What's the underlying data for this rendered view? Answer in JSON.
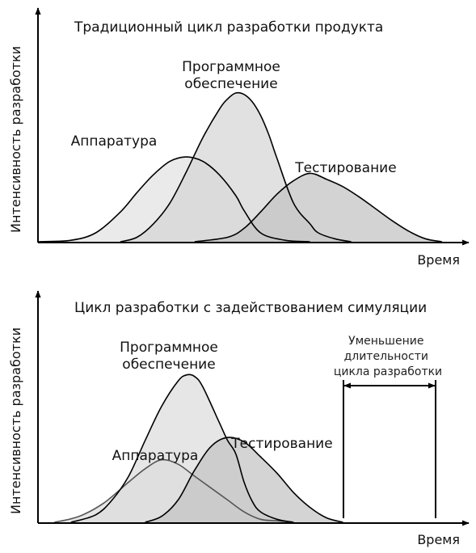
{
  "chart_data": [
    {
      "type": "area",
      "title": "Традиционный цикл разработки продукта",
      "xlabel": "Время",
      "ylabel": "Интенсивность разработки",
      "xlim": [
        0,
        100
      ],
      "ylim": [
        0,
        100
      ],
      "grid": false,
      "legend": "none",
      "series": [
        {
          "name": "Аппаратура",
          "label_lines": [
            "Аппаратура"
          ],
          "color": "#e2e2e2",
          "x": [
            0,
            8,
            14,
            20,
            24,
            28,
            32,
            36,
            40,
            44,
            48,
            50,
            54,
            60,
            66
          ],
          "y": [
            0,
            1,
            6,
            20,
            33,
            45,
            54,
            57,
            54,
            45,
            31,
            21,
            6,
            1,
            0
          ]
        },
        {
          "name": "Программное обеспечение",
          "label_lines": [
            "Программное",
            "обеспечение"
          ],
          "color": "#d6d6d6",
          "x": [
            20,
            24,
            28,
            32,
            36,
            40,
            44,
            46,
            48,
            50,
            52,
            54,
            56,
            58,
            62,
            66,
            68,
            72,
            76
          ],
          "y": [
            0,
            3,
            12,
            26,
            47,
            70,
            89,
            96,
            100,
            99,
            94,
            85,
            72,
            56,
            26,
            12,
            6,
            2,
            0
          ]
        },
        {
          "name": "Тестирование",
          "label_lines": [
            "Тестирование"
          ],
          "color": "#c2c2c2",
          "x": [
            38,
            46,
            50,
            54,
            58,
            62,
            66,
            70,
            74,
            78,
            82,
            86,
            90,
            94,
            98
          ],
          "y": [
            0,
            3,
            9,
            20,
            32,
            41,
            46,
            42,
            37,
            30,
            22,
            14,
            7,
            2,
            0
          ]
        }
      ]
    },
    {
      "type": "area",
      "title": "Цикл разработки с задействованием симуляции",
      "xlabel": "Время",
      "ylabel": "Интенсивность разработки",
      "xlim": [
        0,
        100
      ],
      "ylim": [
        0,
        100
      ],
      "grid": false,
      "legend": "none",
      "series": [
        {
          "name": "Аппаратура",
          "label_lines": [
            "Аппаратура"
          ],
          "color": "#dcdcdc",
          "x": [
            4,
            10,
            16,
            22,
            26,
            30,
            34,
            38,
            42,
            46,
            50,
            54,
            58,
            62
          ],
          "y": [
            0,
            4,
            13,
            27,
            36,
            42,
            39,
            31,
            23,
            15,
            7,
            2,
            1,
            0
          ]
        },
        {
          "name": "Программное обеспечение",
          "label_lines": [
            "Программное",
            "обеспечение"
          ],
          "color": "#dddddd",
          "x": [
            8,
            14,
            18,
            22,
            26,
            30,
            34,
            36,
            38,
            40,
            44,
            46,
            48,
            50,
            52,
            54,
            58,
            62
          ],
          "y": [
            0,
            5,
            15,
            31,
            55,
            78,
            95,
            99,
            98,
            91,
            67,
            55,
            46,
            27,
            14,
            7,
            2,
            0
          ]
        },
        {
          "name": "Тестирование",
          "label_lines": [
            "Тестирование"
          ],
          "color": "#c4c4c4",
          "x": [
            26,
            30,
            34,
            38,
            42,
            46,
            50,
            54,
            58,
            62,
            66,
            70,
            74
          ],
          "y": [
            0,
            4,
            15,
            35,
            51,
            57,
            54,
            44,
            33,
            20,
            10,
            3,
            0
          ]
        }
      ],
      "annotation": {
        "lines": [
          "Уменьшение",
          "длительности",
          "цикла разработки"
        ]
      }
    }
  ]
}
